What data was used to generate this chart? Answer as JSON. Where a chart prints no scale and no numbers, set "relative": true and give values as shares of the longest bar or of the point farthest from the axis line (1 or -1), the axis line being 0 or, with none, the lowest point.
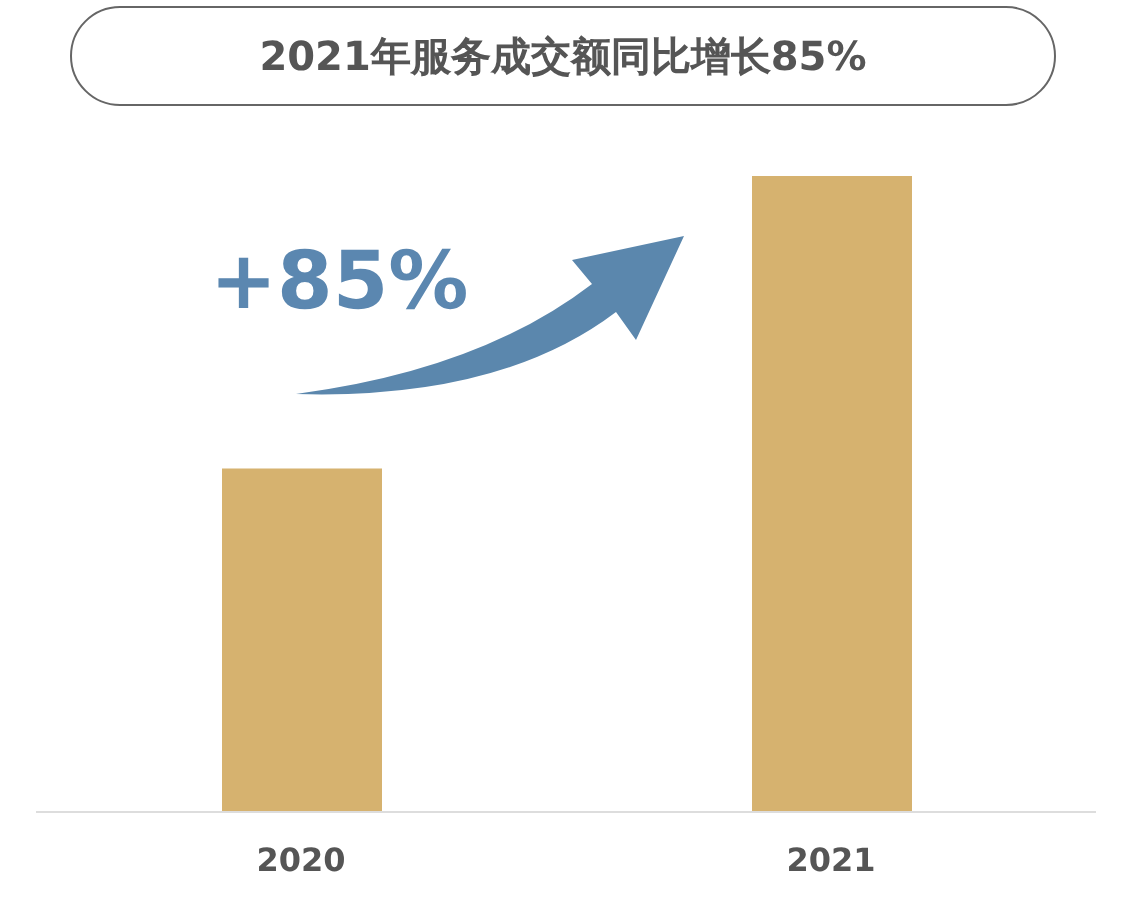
{
  "chart_data": {
    "type": "bar",
    "title": "2021年服务成交额同比增长85%",
    "categories": [
      "2020",
      "2021"
    ],
    "values": [
      0.54,
      1
    ],
    "color": "#d6b26f",
    "relative": true,
    "annotations": [
      "+85%"
    ]
  }
}
